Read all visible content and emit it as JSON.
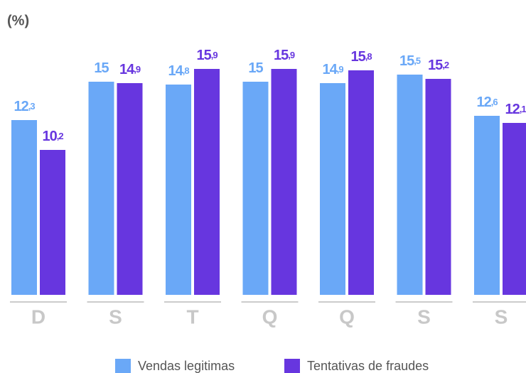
{
  "chart_data": {
    "type": "bar",
    "title": "(%)",
    "categories": [
      "D",
      "S",
      "T",
      "Q",
      "Q",
      "S",
      "S"
    ],
    "series": [
      {
        "name": "Vendas legitimas",
        "color": "#6aa8f7",
        "values": [
          12.3,
          15,
          14.8,
          15,
          14.9,
          15.5,
          12.6
        ],
        "value_labels": [
          "12,3",
          "15",
          "14,8",
          "15",
          "14,9",
          "15,5",
          "12,6"
        ]
      },
      {
        "name": "Tentativas de fraudes",
        "color": "#6736df",
        "values": [
          10.2,
          14.9,
          15.9,
          15.9,
          15.8,
          15.2,
          12.1
        ],
        "value_labels": [
          "10,2",
          "14,9",
          "15,9",
          "15,9",
          "15,8",
          "15,2",
          "12,1"
        ]
      }
    ],
    "ylim": [
      0,
      20
    ]
  }
}
